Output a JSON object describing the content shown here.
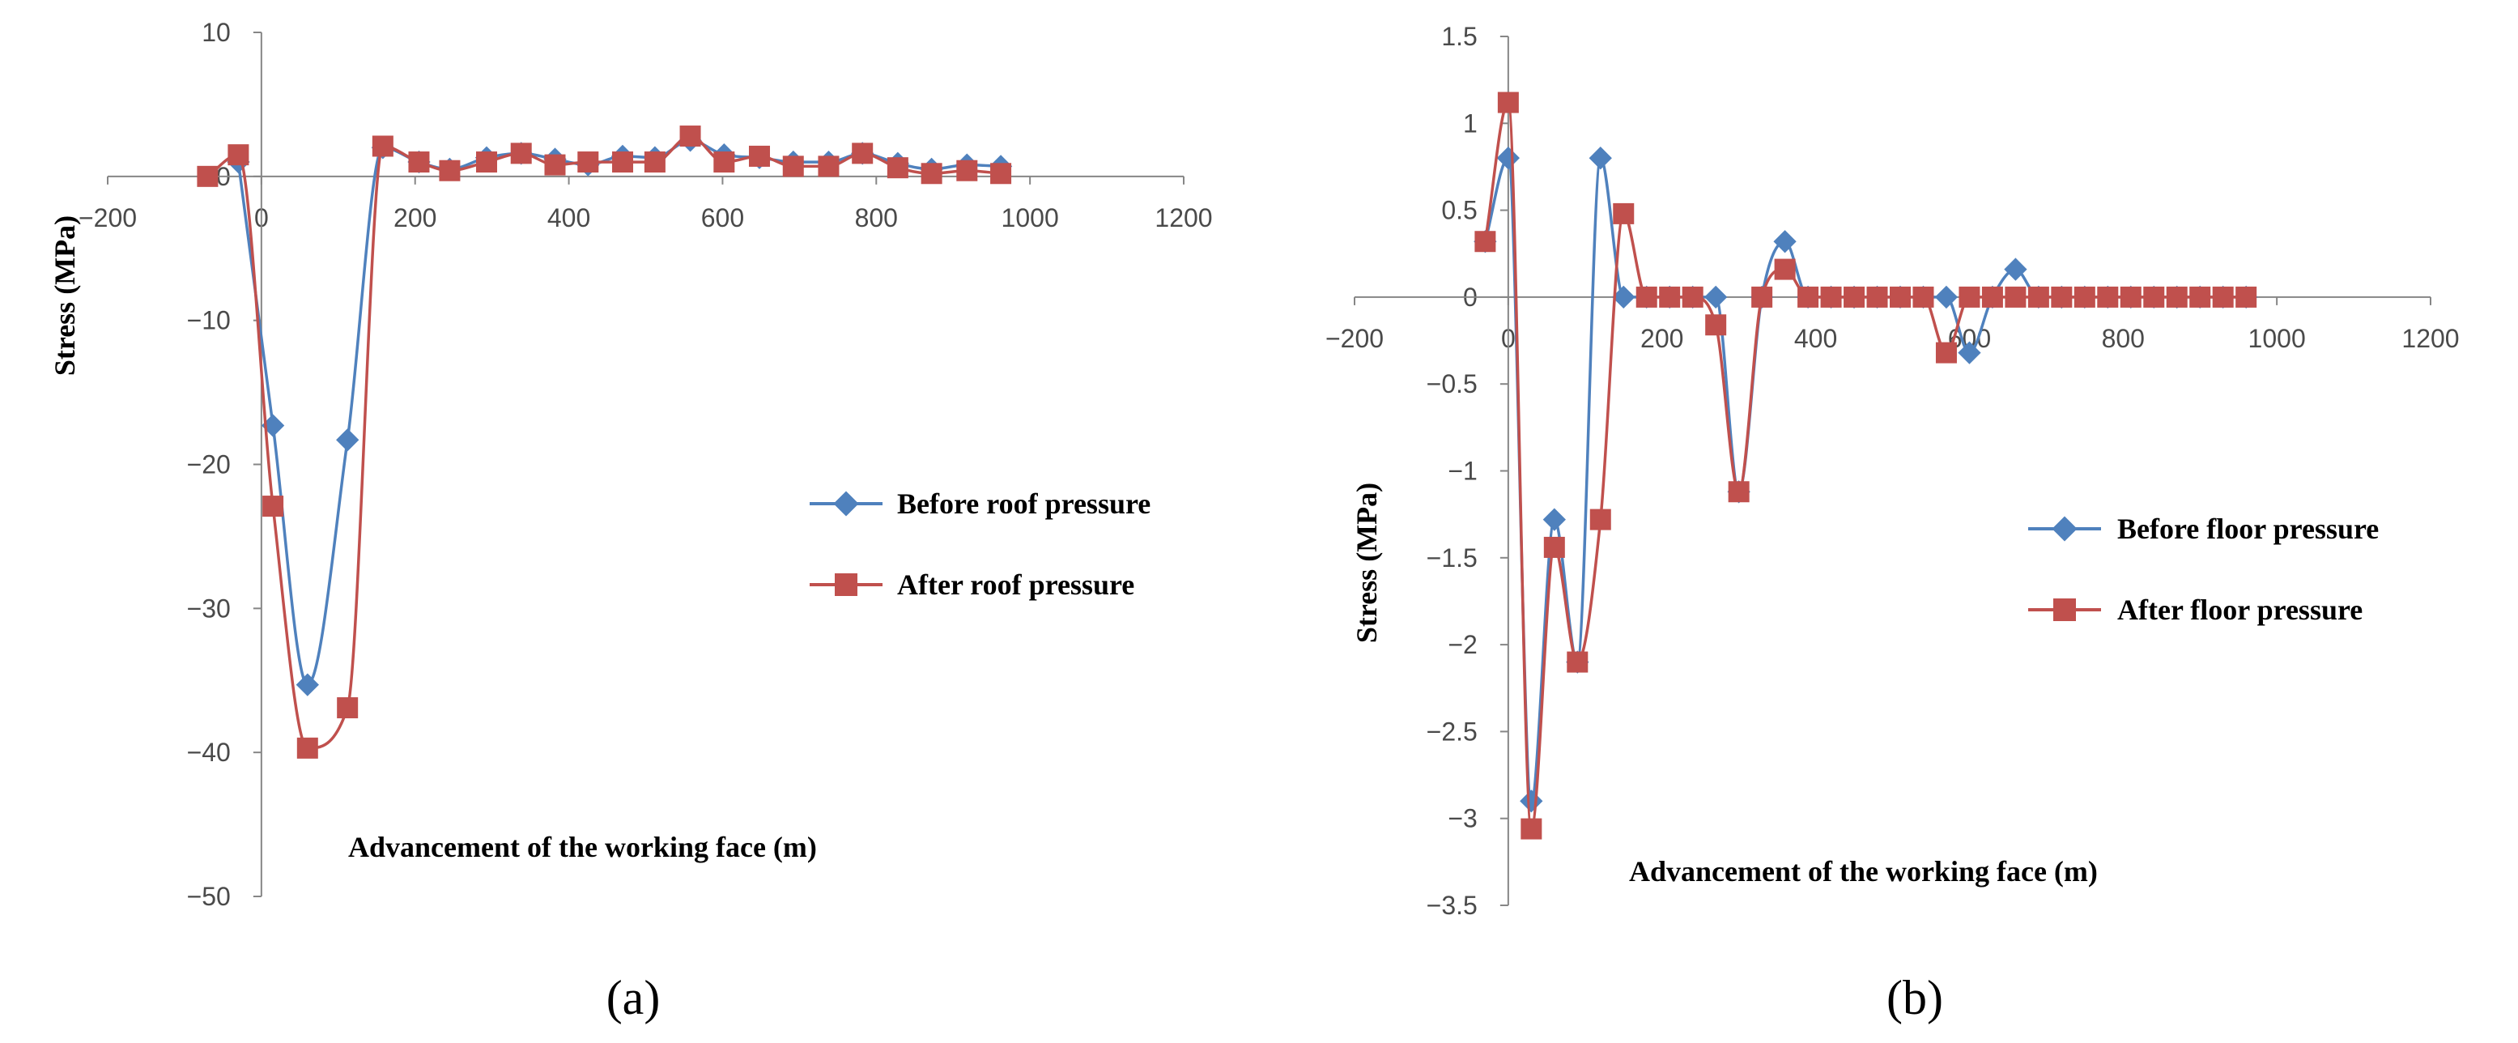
{
  "colors": {
    "before": "#4F81BD",
    "after": "#C0504D",
    "axis": "#868686"
  },
  "chart_data": [
    {
      "type": "line",
      "panel_label": "(a)",
      "xlabel": "Advancement of the working face (m)",
      "ylabel": "Stress (MPa)",
      "xlim": [
        -200,
        1200
      ],
      "ylim": [
        -50,
        10
      ],
      "xticks": [
        -200,
        0,
        200,
        400,
        600,
        800,
        1000,
        1200
      ],
      "yticks": [
        10,
        0,
        -10,
        -20,
        -30,
        -40,
        -50
      ],
      "xtick_labels": [
        "-200",
        "0",
        "200",
        "400",
        "600",
        "800",
        "1000",
        "1200"
      ],
      "ytick_labels": [
        "10",
        "0",
        "-10",
        "-20",
        "-30",
        "-40",
        "-50"
      ],
      "series": [
        {
          "name": "Before roof pressure",
          "marker": "diamond",
          "x": [
            -30,
            15,
            60,
            112,
            158,
            205,
            245,
            293,
            338,
            382,
            425,
            470,
            512,
            558,
            602,
            648,
            692,
            738,
            782,
            828,
            872,
            918,
            962
          ],
          "y": [
            1.0,
            -17.3,
            -35.3,
            -18.3,
            2.0,
            1.0,
            0.5,
            1.3,
            1.6,
            1.2,
            0.8,
            1.4,
            1.3,
            2.5,
            1.5,
            1.3,
            1.0,
            1.0,
            1.6,
            0.9,
            0.5,
            0.8,
            0.7
          ]
        },
        {
          "name": "After roof pressure",
          "marker": "square",
          "x": [
            -70,
            -30,
            15,
            60,
            112,
            158,
            205,
            245,
            293,
            338,
            382,
            425,
            470,
            512,
            558,
            602,
            648,
            692,
            738,
            782,
            828,
            872,
            918,
            962
          ],
          "y": [
            0.0,
            1.5,
            -22.9,
            -39.7,
            -36.9,
            2.1,
            1.0,
            0.4,
            1.0,
            1.6,
            0.8,
            1.0,
            1.0,
            1.0,
            2.8,
            1.0,
            1.4,
            0.7,
            0.7,
            1.6,
            0.6,
            0.2,
            0.4,
            0.2
          ]
        }
      ]
    },
    {
      "type": "line",
      "panel_label": "(b)",
      "xlabel": "Advancement of the working face (m)",
      "ylabel": "Stress (MPa)",
      "xlim": [
        -200,
        1200
      ],
      "ylim": [
        -3.5,
        1.5
      ],
      "xticks": [
        -200,
        0,
        200,
        400,
        600,
        800,
        1000,
        1200
      ],
      "yticks": [
        1.5,
        1,
        0.5,
        0,
        -0.5,
        -1,
        -1.5,
        -2,
        -2.5,
        -3,
        -3.5
      ],
      "xtick_labels": [
        "-200",
        "0",
        "200",
        "400",
        "600",
        "800",
        "1000",
        "1200"
      ],
      "ytick_labels": [
        "1.5",
        "1",
        "0.5",
        "0",
        "-0.5",
        "-1",
        "-1.5",
        "-2",
        "-2.5",
        "-3",
        "-3.5"
      ],
      "series": [
        {
          "name": "Before floor pressure",
          "marker": "diamond",
          "x": [
            -30,
            0,
            30,
            60,
            90,
            120,
            150,
            180,
            210,
            240,
            270,
            300,
            330,
            360,
            390,
            420,
            450,
            480,
            510,
            540,
            570,
            600,
            630,
            660,
            690,
            720,
            750,
            780,
            810,
            840,
            870,
            900,
            930,
            960
          ],
          "y": [
            0.32,
            0.8,
            -2.9,
            -1.28,
            -2.1,
            0.8,
            0.0,
            0.0,
            0.0,
            0.0,
            0.0,
            -1.12,
            0.0,
            0.32,
            0.0,
            0.0,
            0.0,
            0.0,
            0.0,
            0.0,
            0.0,
            -0.32,
            0.0,
            0.16,
            0.0,
            0.0,
            0.0,
            0.0,
            0.0,
            0.0,
            0.0,
            0.0,
            0.0,
            0.0
          ]
        },
        {
          "name": "After floor pressure",
          "marker": "square",
          "x": [
            -30,
            0,
            30,
            60,
            90,
            120,
            150,
            180,
            210,
            240,
            270,
            300,
            330,
            360,
            390,
            420,
            450,
            480,
            510,
            540,
            570,
            600,
            630,
            660,
            690,
            720,
            750,
            780,
            810,
            840,
            870,
            900,
            930,
            960
          ],
          "y": [
            0.32,
            1.12,
            -3.06,
            -1.44,
            -2.1,
            -1.28,
            0.48,
            0.0,
            0.0,
            0.0,
            -0.16,
            -1.12,
            0.0,
            0.16,
            0.0,
            0.0,
            0.0,
            0.0,
            0.0,
            0.0,
            -0.32,
            0.0,
            0.0,
            0.0,
            0.0,
            0.0,
            0.0,
            0.0,
            0.0,
            0.0,
            0.0,
            0.0,
            0.0,
            0.0
          ]
        }
      ]
    }
  ]
}
